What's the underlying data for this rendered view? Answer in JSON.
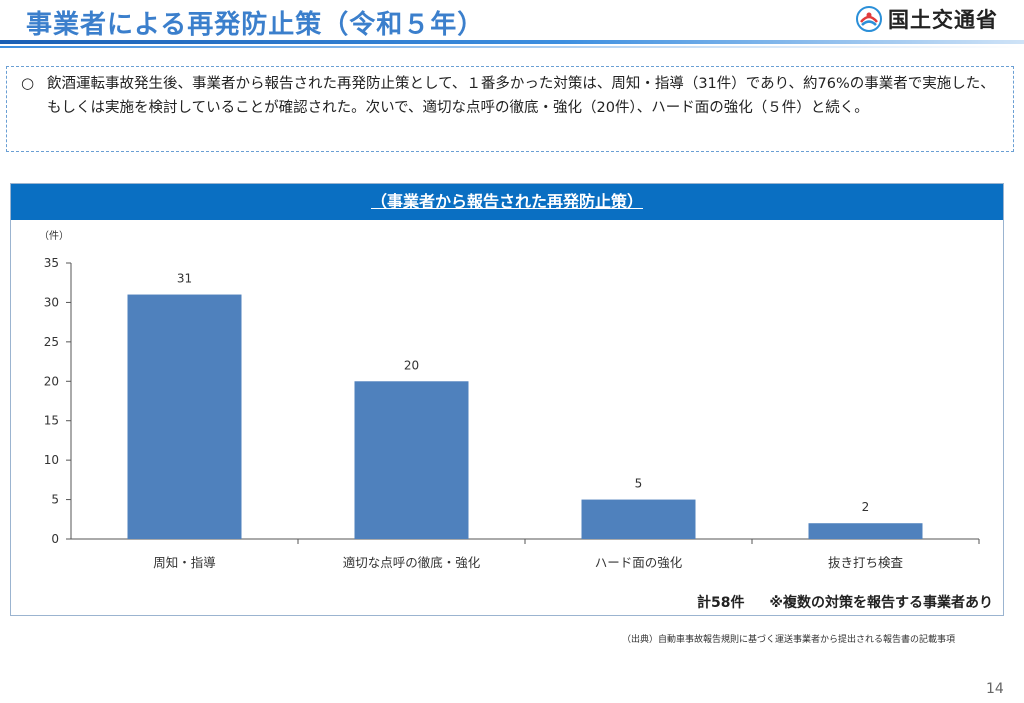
{
  "header": {
    "title": "事業者による再発防止策（令和５年）",
    "logo_text": "国土交通省"
  },
  "summary": {
    "bullet": "○",
    "text": "飲酒運転事故発生後、事業者から報告された再発防止策として、１番多かった対策は、周知・指導（31件）であり、約76%の事業者で実施した、もしくは実施を検討していることが確認された。次いで、適切な点呼の徹底・強化（20件）、ハード面の強化（５件）と続く。"
  },
  "colors": {
    "bar": "#4f81bd",
    "panel_header": "#0a6fc2",
    "title": "#3b7fcc"
  },
  "chart_data": {
    "type": "bar",
    "title": "（事業者から報告された再発防止策）",
    "ylabel": "（件）",
    "xlabel": "",
    "ylim": [
      0,
      35
    ],
    "yticks": [
      0,
      5,
      10,
      15,
      20,
      25,
      30,
      35
    ],
    "categories": [
      "周知・指導",
      "適切な点呼の徹底・強化",
      "ハード面の強化",
      "抜き打ち検査"
    ],
    "values": [
      31,
      20,
      5,
      2
    ],
    "grid": false
  },
  "footer": {
    "total": "計58件",
    "note": "※複数の対策を報告する事業者あり",
    "source": "（出典）自動車事故報告規則に基づく運送事業者から提出される報告書の記載事項",
    "page_number": "14"
  }
}
